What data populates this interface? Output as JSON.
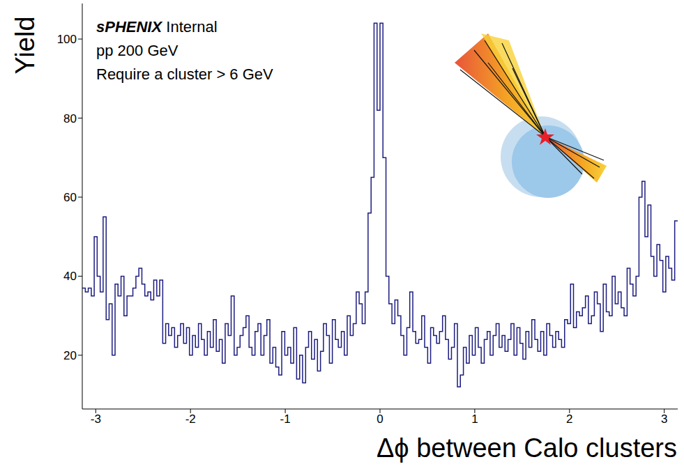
{
  "chart_data": {
    "type": "histogram",
    "x_label": "Δϕ between Calo clusters",
    "y_label": "Yield",
    "annotations": [
      "sPHENIX",
      "Internal",
      "pp 200 GeV",
      "Require a cluster > 6 GeV"
    ],
    "color": "#1c1c80",
    "line_style": "step",
    "xlim": [
      -3.142,
      3.142
    ],
    "ylim": [
      6.4,
      109
    ],
    "xticks": [
      -3,
      -2,
      -1,
      0,
      1,
      2,
      3
    ],
    "yticks": [
      20,
      40,
      60,
      80,
      100
    ],
    "grid": false,
    "bins": [
      -3.142,
      -3.11,
      -3.079,
      -3.047,
      -3.016,
      -2.985,
      -2.953,
      -2.922,
      -2.89,
      -2.859,
      -2.827,
      -2.796,
      -2.765,
      -2.733,
      -2.702,
      -2.67,
      -2.639,
      -2.608,
      -2.576,
      -2.545,
      -2.513,
      -2.482,
      -2.45,
      -2.419,
      -2.388,
      -2.356,
      -2.325,
      -2.293,
      -2.262,
      -2.231,
      -2.199,
      -2.168,
      -2.136,
      -2.105,
      -2.073,
      -2.042,
      -2.011,
      -1.979,
      -1.948,
      -1.916,
      -1.885,
      -1.854,
      -1.822,
      -1.791,
      -1.759,
      -1.728,
      -1.696,
      -1.665,
      -1.634,
      -1.602,
      -1.571,
      -1.539,
      -1.508,
      -1.477,
      -1.445,
      -1.414,
      -1.382,
      -1.351,
      -1.319,
      -1.288,
      -1.257,
      -1.225,
      -1.194,
      -1.162,
      -1.131,
      -1.1,
      -1.068,
      -1.037,
      -1.005,
      -0.974,
      -0.942,
      -0.911,
      -0.88,
      -0.848,
      -0.817,
      -0.785,
      -0.754,
      -0.723,
      -0.691,
      -0.66,
      -0.628,
      -0.597,
      -0.565,
      -0.534,
      -0.503,
      -0.471,
      -0.44,
      -0.408,
      -0.377,
      -0.346,
      -0.314,
      -0.283,
      -0.251,
      -0.22,
      -0.188,
      -0.157,
      -0.126,
      -0.094,
      -0.063,
      -0.031,
      0,
      0.031,
      0.063,
      0.094,
      0.126,
      0.157,
      0.188,
      0.22,
      0.251,
      0.283,
      0.314,
      0.346,
      0.377,
      0.408,
      0.44,
      0.471,
      0.503,
      0.534,
      0.565,
      0.597,
      0.628,
      0.66,
      0.691,
      0.723,
      0.754,
      0.785,
      0.817,
      0.848,
      0.88,
      0.911,
      0.942,
      0.974,
      1.005,
      1.037,
      1.068,
      1.1,
      1.131,
      1.162,
      1.194,
      1.225,
      1.257,
      1.288,
      1.319,
      1.351,
      1.382,
      1.414,
      1.445,
      1.477,
      1.508,
      1.539,
      1.571,
      1.602,
      1.634,
      1.665,
      1.696,
      1.728,
      1.759,
      1.791,
      1.822,
      1.854,
      1.885,
      1.916,
      1.948,
      1.979,
      2.011,
      2.042,
      2.073,
      2.105,
      2.136,
      2.168,
      2.199,
      2.231,
      2.262,
      2.293,
      2.325,
      2.356,
      2.388,
      2.419,
      2.45,
      2.482,
      2.513,
      2.545,
      2.576,
      2.608,
      2.639,
      2.67,
      2.702,
      2.733,
      2.765,
      2.796,
      2.827,
      2.859,
      2.89,
      2.922,
      2.953,
      2.985,
      3.016,
      3.047,
      3.079,
      3.11,
      3.142
    ],
    "values": [
      37,
      36,
      37,
      35,
      50,
      40,
      36,
      55,
      29,
      33,
      20,
      38,
      35,
      40,
      30,
      35,
      35,
      37,
      40,
      42,
      38,
      35,
      36,
      34,
      39,
      35,
      39,
      23,
      28,
      25,
      27,
      22,
      25,
      28,
      23,
      27,
      20,
      25,
      22,
      28,
      24,
      20,
      26,
      22,
      29,
      21,
      24,
      18,
      28,
      25,
      35,
      20,
      22,
      25,
      27,
      30,
      22,
      20,
      26,
      28,
      20,
      25,
      29,
      18,
      22,
      17,
      15,
      26,
      20,
      22,
      18,
      27,
      14,
      20,
      13,
      22,
      26,
      19,
      24,
      16,
      21,
      28,
      25,
      18,
      29,
      24,
      22,
      26,
      20,
      30,
      25,
      28,
      36,
      33,
      28,
      36,
      56,
      65,
      104,
      82,
      104,
      70,
      40,
      33,
      28,
      34,
      30,
      25,
      20,
      27,
      36,
      26,
      23,
      24,
      30,
      22,
      18,
      27,
      25,
      23,
      26,
      30,
      24,
      19,
      22,
      28,
      12,
      15,
      22,
      18,
      25,
      20,
      27,
      22,
      18,
      24,
      26,
      20,
      25,
      28,
      22,
      25,
      21,
      24,
      28,
      20,
      27,
      23,
      19,
      26,
      22,
      29,
      24,
      21,
      26,
      20,
      28,
      25,
      22,
      26,
      24,
      22,
      29,
      28,
      38,
      27,
      31,
      30,
      32,
      35,
      28,
      30,
      36,
      33,
      26,
      38,
      31,
      30,
      40,
      33,
      36,
      32,
      30,
      42,
      38,
      35,
      40,
      60,
      64,
      50,
      58,
      45,
      40,
      48,
      44,
      36,
      45,
      42,
      39,
      54
    ]
  }
}
